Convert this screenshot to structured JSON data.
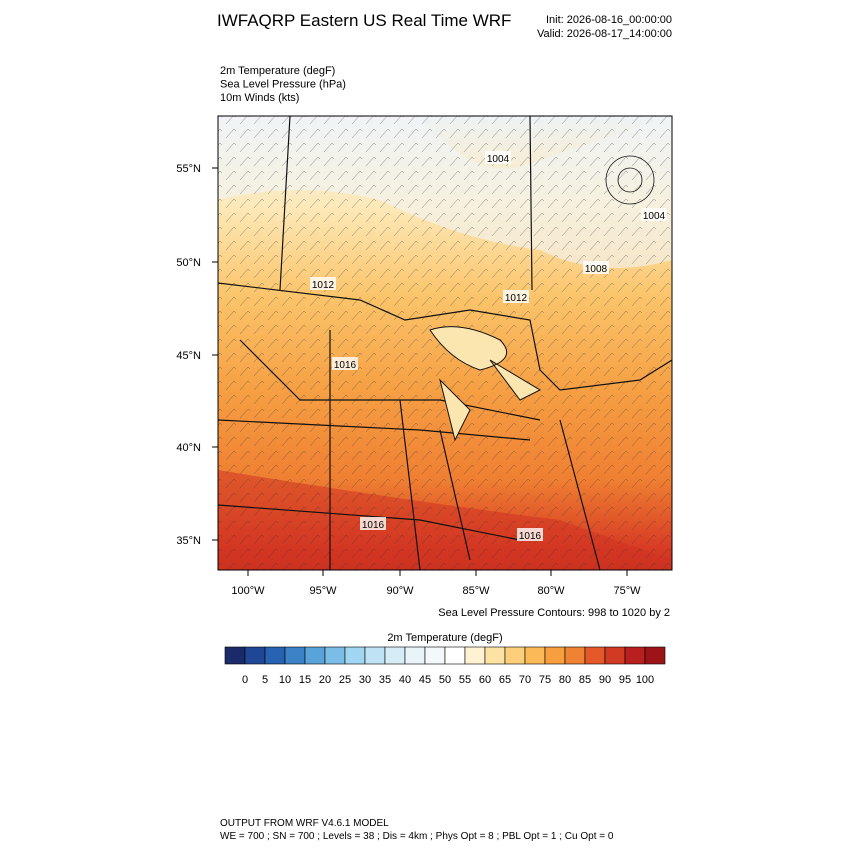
{
  "header": {
    "title": "IWFAQRP Eastern US Real Time WRF",
    "init": "Init: 2026-08-16_00:00:00",
    "valid": "Valid: 2026-08-17_14:00:00"
  },
  "fields": [
    "2m Temperature   (degF)",
    "Sea Level Pressure   (hPa)",
    "10m Winds   (kts)"
  ],
  "map": {
    "lat_labels": [
      "55°N",
      "50°N",
      "45°N",
      "40°N",
      "35°N"
    ],
    "lon_labels": [
      "100°W",
      "95°W",
      "90°W",
      "85°W",
      "80°W",
      "75°W"
    ],
    "pressure_labels": [
      "1004",
      "1004",
      "1008",
      "1012",
      "1012",
      "1016",
      "1016",
      "1016"
    ],
    "contour_note": "Sea Level Pressure Contours: 998 to 1020 by 2"
  },
  "colorbar": {
    "title": "2m Temperature  (degF)",
    "labels": [
      0,
      5,
      10,
      15,
      20,
      25,
      30,
      35,
      40,
      45,
      50,
      55,
      60,
      65,
      70,
      75,
      80,
      85,
      90,
      95,
      100
    ],
    "colors": [
      "#1b2a68",
      "#1f4795",
      "#2862b2",
      "#3b82c6",
      "#58a3d9",
      "#7bbde6",
      "#a1d6f3",
      "#bfe3f4",
      "#d6edf7",
      "#e9f4f9",
      "#f4f8fb",
      "#ffffff",
      "#fff2d2",
      "#fde3a3",
      "#fdcf7b",
      "#fbb957",
      "#f79e3f",
      "#ef8233",
      "#e4582a",
      "#d23a23",
      "#ba1f20",
      "#9d1418"
    ]
  },
  "footer": {
    "line1": "OUTPUT FROM WRF V4.6.1 MODEL",
    "line2": "WE = 700 ; SN = 700 ; Levels = 38 ; Dis = 4km ; Phys Opt = 8 ; PBL Opt = 1 ; Cu Opt = 0"
  }
}
